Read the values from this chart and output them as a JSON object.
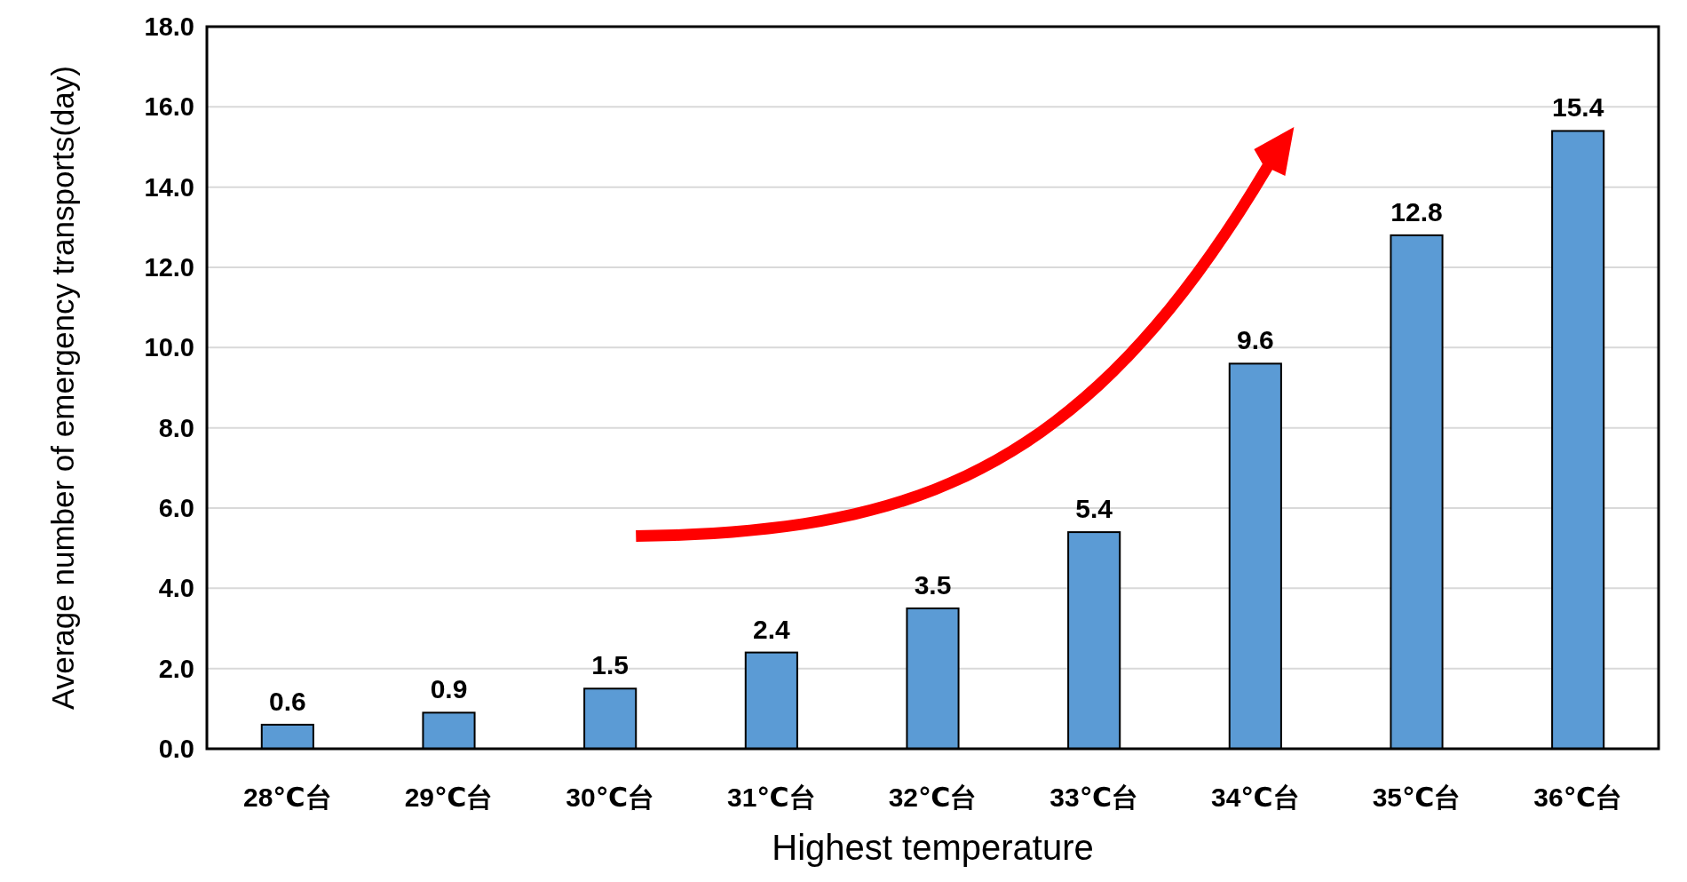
{
  "chart_data": {
    "type": "bar",
    "xlabel": "Highest temperature",
    "ylabel": "Average number of emergency transports(day)",
    "categories": [
      "28℃台",
      "29℃台",
      "30℃台",
      "31℃台",
      "32℃台",
      "33℃台",
      "34℃台",
      "35℃台",
      "36℃台"
    ],
    "values": [
      0.6,
      0.9,
      1.5,
      2.4,
      3.5,
      5.4,
      9.6,
      12.8,
      15.4
    ],
    "color": "#5b9bd5",
    "data_labels": true,
    "grid": "y",
    "ylim": [
      0,
      18
    ],
    "yticks": [
      {
        "value": 0,
        "label": "0.0"
      },
      {
        "value": 2,
        "label": "2.0"
      },
      {
        "value": 4,
        "label": "4.0"
      },
      {
        "value": 6,
        "label": "6.0"
      },
      {
        "value": 8,
        "label": "8.0"
      },
      {
        "value": 10,
        "label": "10.0"
      },
      {
        "value": 12,
        "label": "12.0"
      },
      {
        "value": 14,
        "label": "14.0"
      },
      {
        "value": 16,
        "label": "16.0"
      },
      {
        "value": 18,
        "label": "18.0"
      }
    ]
  }
}
